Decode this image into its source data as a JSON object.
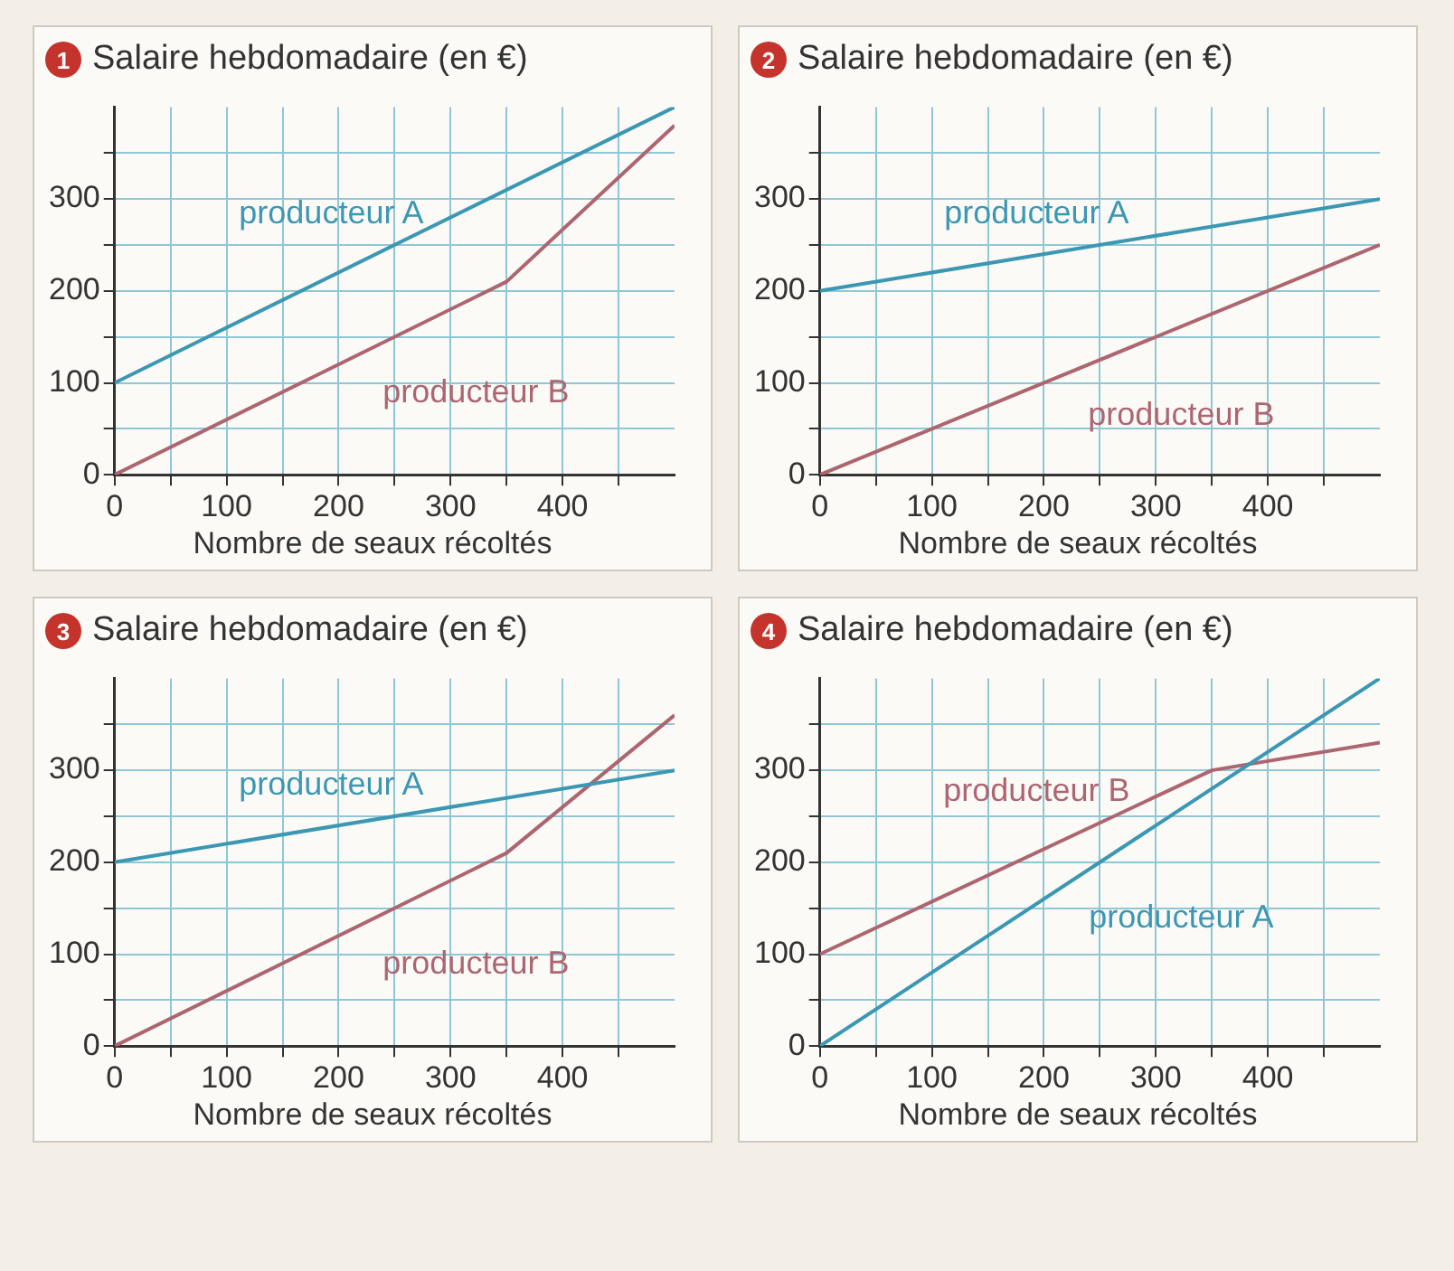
{
  "chart_data": [
    {
      "type": "line",
      "title": "Salaire hebdomadaire (en €)",
      "xlabel": "Nombre de seaux récoltés",
      "annotations": [
        "1"
      ],
      "xlim": [
        0,
        500
      ],
      "ylim": [
        0,
        400
      ],
      "xticks": [
        0,
        {
          "value": 50,
          "label": null
        },
        100,
        {
          "value": 150,
          "label": null
        },
        200,
        {
          "value": 250,
          "label": null
        },
        300,
        {
          "value": 350,
          "label": null
        },
        400,
        {
          "value": 450,
          "label": null
        }
      ],
      "yticks": [
        0,
        {
          "value": 50,
          "label": null
        },
        100,
        {
          "value": 150,
          "label": null
        },
        200,
        {
          "value": 250,
          "label": null
        },
        300,
        {
          "value": 350,
          "label": null
        }
      ],
      "grid": true,
      "legend": false,
      "marker": "none",
      "line_style": "solid",
      "series": [
        {
          "name": "producteur A",
          "color": "#3b97b3",
          "x": [
            0,
            500
          ],
          "values": [
            100,
            400
          ]
        },
        {
          "name": "producteur B",
          "color": "#ad6570",
          "x": [
            0,
            350,
            500
          ],
          "values": [
            0,
            210,
            380
          ]
        }
      ]
    },
    {
      "type": "line",
      "title": "Salaire hebdomadaire (en €)",
      "xlabel": "Nombre de seaux récoltés",
      "annotations": [
        "2"
      ],
      "xlim": [
        0,
        500
      ],
      "ylim": [
        0,
        400
      ],
      "xticks": [
        0,
        {
          "value": 50,
          "label": null
        },
        100,
        {
          "value": 150,
          "label": null
        },
        200,
        {
          "value": 250,
          "label": null
        },
        300,
        {
          "value": 350,
          "label": null
        },
        400,
        {
          "value": 450,
          "label": null
        }
      ],
      "yticks": [
        0,
        {
          "value": 50,
          "label": null
        },
        100,
        {
          "value": 150,
          "label": null
        },
        200,
        {
          "value": 250,
          "label": null
        },
        300,
        {
          "value": 350,
          "label": null
        }
      ],
      "grid": true,
      "legend": false,
      "marker": "none",
      "line_style": "solid",
      "series": [
        {
          "name": "producteur A",
          "color": "#3b97b3",
          "x": [
            0,
            500
          ],
          "values": [
            200,
            300
          ]
        },
        {
          "name": "producteur B",
          "color": "#ad6570",
          "x": [
            0,
            500
          ],
          "values": [
            0,
            250
          ]
        }
      ]
    },
    {
      "type": "line",
      "title": "Salaire hebdomadaire (en €)",
      "xlabel": "Nombre de seaux récoltés",
      "annotations": [
        "3"
      ],
      "xlim": [
        0,
        500
      ],
      "ylim": [
        0,
        400
      ],
      "xticks": [
        0,
        {
          "value": 50,
          "label": null
        },
        100,
        {
          "value": 150,
          "label": null
        },
        200,
        {
          "value": 250,
          "label": null
        },
        300,
        {
          "value": 350,
          "label": null
        },
        400,
        {
          "value": 450,
          "label": null
        }
      ],
      "yticks": [
        0,
        {
          "value": 50,
          "label": null
        },
        100,
        {
          "value": 150,
          "label": null
        },
        200,
        {
          "value": 250,
          "label": null
        },
        300,
        {
          "value": 350,
          "label": null
        }
      ],
      "grid": true,
      "legend": false,
      "marker": "none",
      "line_style": "solid",
      "series": [
        {
          "name": "producteur A",
          "color": "#3b97b3",
          "x": [
            0,
            500
          ],
          "values": [
            200,
            300
          ]
        },
        {
          "name": "producteur B",
          "color": "#ad6570",
          "x": [
            0,
            350,
            500
          ],
          "values": [
            0,
            210,
            360
          ]
        }
      ]
    },
    {
      "type": "line",
      "title": "Salaire hebdomadaire (en €)",
      "xlabel": "Nombre de seaux récoltés",
      "annotations": [
        "4"
      ],
      "xlim": [
        0,
        500
      ],
      "ylim": [
        0,
        400
      ],
      "xticks": [
        0,
        {
          "value": 50,
          "label": null
        },
        100,
        {
          "value": 150,
          "label": null
        },
        200,
        {
          "value": 250,
          "label": null
        },
        300,
        {
          "value": 350,
          "label": null
        },
        400,
        {
          "value": 450,
          "label": null
        }
      ],
      "yticks": [
        0,
        {
          "value": 50,
          "label": null
        },
        100,
        {
          "value": 150,
          "label": null
        },
        200,
        {
          "value": 250,
          "label": null
        },
        300,
        {
          "value": 350,
          "label": null
        }
      ],
      "grid": true,
      "legend": false,
      "marker": "none",
      "line_style": "solid",
      "series": [
        {
          "name": "producteur A",
          "color": "#3b97b3",
          "x": [
            0,
            500
          ],
          "values": [
            0,
            400
          ]
        },
        {
          "name": "producteur B",
          "color": "#ad6570",
          "x": [
            0,
            350,
            500
          ],
          "values": [
            100,
            300,
            330
          ]
        }
      ]
    }
  ]
}
